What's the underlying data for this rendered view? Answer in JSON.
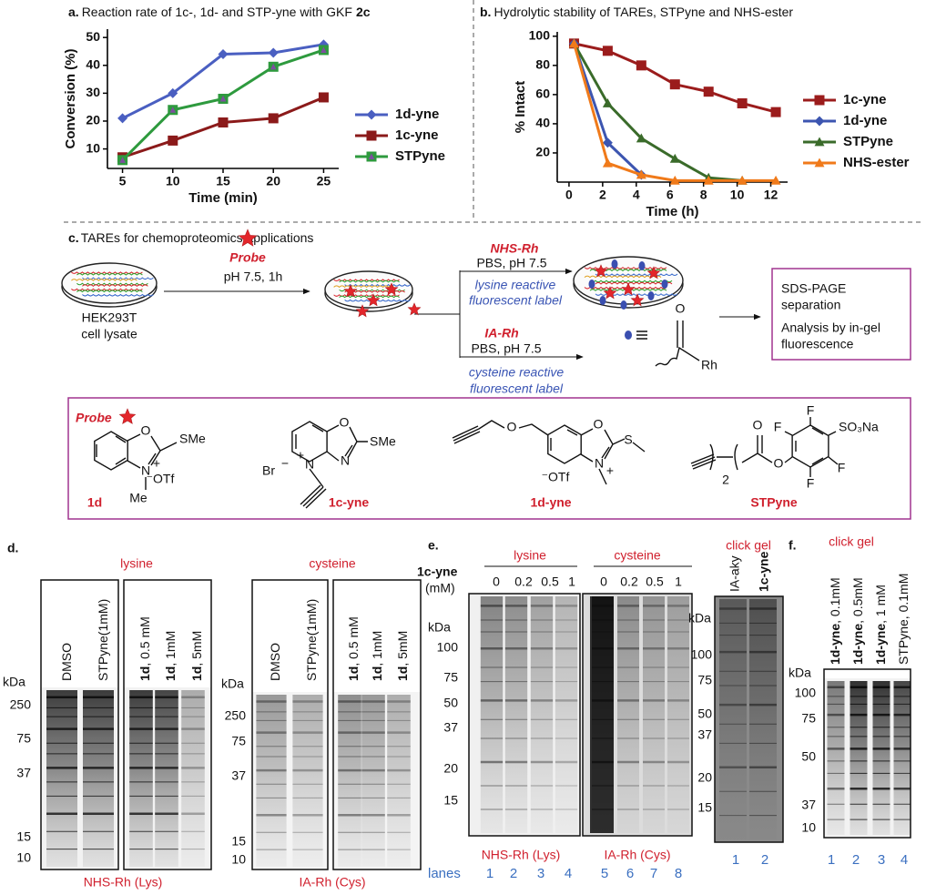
{
  "chart_data": [
    {
      "type": "line",
      "panel": "a.",
      "title": "Reaction rate of 1c-, 1d- and STP-yne with GKF",
      "title_bold": "2c",
      "x_label": "Time (min)",
      "y_label": "Conversion (%)",
      "x": [
        5,
        10,
        15,
        20,
        25
      ],
      "xlim": [
        3.5,
        26.5
      ],
      "xticks": [
        5,
        10,
        15,
        20,
        25
      ],
      "ylim": [
        3,
        53
      ],
      "yticks": [
        10,
        20,
        30,
        40,
        50
      ],
      "legend": "right",
      "series": [
        {
          "name": "1d-yne",
          "color": "#4a5fc1",
          "marker": "diamond",
          "values": [
            21,
            30,
            44,
            44.5,
            47.5
          ]
        },
        {
          "name": "1c-yne",
          "color": "#8b1a1a",
          "marker": "square",
          "values": [
            7,
            13,
            19.5,
            21,
            28.5
          ]
        },
        {
          "name": "STPyne",
          "color": "#2e9a3e",
          "marker": "boxed-triangle",
          "marker_color": "#7d4f9e",
          "values": [
            6,
            24,
            28,
            39.5,
            45.5
          ]
        }
      ]
    },
    {
      "type": "line",
      "panel": "b.",
      "title": "Hydrolytic stability of TAREs, STPyne and NHS-ester",
      "x_label": "Time (h)",
      "y_label": "% Intact",
      "x": [
        0.3,
        2.3,
        4.3,
        6.3,
        8.3,
        10.3,
        12.3
      ],
      "xlim": [
        -0.7,
        13
      ],
      "xticks": [
        0,
        2,
        4,
        6,
        8,
        10,
        12
      ],
      "ylim": [
        0,
        103
      ],
      "yticks": [
        20,
        40,
        60,
        80,
        100
      ],
      "legend": "right",
      "series": [
        {
          "name": "1c-yne",
          "color": "#9b1c1c",
          "marker": "square",
          "values": [
            95,
            90,
            80,
            67,
            62,
            54,
            48
          ]
        },
        {
          "name": "1d-yne",
          "color": "#3c55b0",
          "marker": "diamond",
          "values": [
            95,
            27,
            5,
            null,
            null,
            null,
            null
          ]
        },
        {
          "name": "STPyne",
          "color": "#3a6b2a",
          "marker": "triangle",
          "values": [
            95,
            54,
            30,
            16,
            3,
            1,
            null
          ]
        },
        {
          "name": "NHS-ester",
          "color": "#f07a1a",
          "marker": "triangle",
          "values": [
            95,
            13,
            5,
            1,
            1,
            1,
            1
          ]
        }
      ]
    }
  ],
  "panel_c": {
    "label": "c.",
    "title": "TAREs for chemoproteomics applications",
    "probe": "Probe",
    "step1": "pH 7.5, 1h",
    "lysate": [
      "HEK293T",
      "cell lysate"
    ],
    "top": {
      "reagent": "NHS-Rh",
      "buffer": "PBS, pH 7.5",
      "note": [
        "lysine reactive",
        "fluorescent label"
      ]
    },
    "bottom": {
      "reagent": "IA-Rh",
      "buffer": "PBS, pH 7.5",
      "note": [
        "cysteine reactive",
        "fluorescent label"
      ],
      "atoms": [
        "O",
        "Rh"
      ]
    },
    "box": [
      "SDS-PAGE",
      "separation",
      "Analysis by in-gel",
      "fluorescence"
    ]
  },
  "structures": {
    "probe": "Probe",
    "compounds": [
      {
        "name": "1d",
        "atoms": [
          "O",
          "SMe",
          "N",
          "+",
          "⁻OTf",
          "Me"
        ]
      },
      {
        "name": "1c-yne",
        "atoms": [
          "O",
          "SMe",
          "N",
          "N",
          "+",
          "Br",
          "−"
        ]
      },
      {
        "name": "1d-yne",
        "atoms": [
          "O",
          "O",
          "S",
          "N",
          "+",
          "⁻OTf"
        ]
      },
      {
        "name": "STPyne",
        "atoms": [
          "F",
          "SO₃Na",
          "F",
          "F",
          "F",
          "O",
          "O",
          "2"
        ]
      }
    ]
  },
  "panel_d": {
    "label": "d.",
    "groups": [
      "lysine",
      "cysteine"
    ],
    "lanes_left": [
      {
        "text": "DMSO"
      },
      {
        "text": "STPyne(1mM)"
      }
    ],
    "lanes_right": [
      {
        "bold": "1d",
        "text": ", 0.5 mM"
      },
      {
        "bold": "1d",
        "text": ", 1mM"
      },
      {
        "bold": "1d",
        "text": ", 5mM"
      }
    ],
    "kda": "kDa",
    "markers_lys": [
      250,
      75,
      37,
      15,
      10
    ],
    "markers_cys": [
      250,
      75,
      37,
      15,
      10
    ],
    "captions": [
      "NHS-Rh (Lys)",
      "IA-Rh (Cys)"
    ]
  },
  "panel_e": {
    "label": "e.",
    "compound": "1c-yne",
    "unit": "(mM)",
    "groups": [
      "lysine",
      "cysteine"
    ],
    "conc": [
      0,
      0.2,
      0.5,
      1
    ],
    "kda": "kDa",
    "markers": [
      100,
      75,
      50,
      37,
      20,
      15
    ],
    "captions": [
      "NHS-Rh (Lys)",
      "IA-Rh (Cys)"
    ],
    "lanes_label": "lanes",
    "lanes": [
      1,
      2,
      3,
      4,
      5,
      6,
      7,
      8
    ]
  },
  "click_gel": {
    "title": "click gel",
    "lanes": [
      "IA-aky",
      "1c-yne"
    ],
    "kda": "kDa",
    "markers": [
      100,
      75,
      50,
      37,
      20,
      15
    ],
    "numbers": [
      1,
      2
    ]
  },
  "panel_f": {
    "label": "f.",
    "title": "click gel",
    "lanes": [
      {
        "bold": "1d-yne",
        "text": ", 0.1mM"
      },
      {
        "bold": "1d-yne",
        "text": ", 0.5mM"
      },
      {
        "bold": "1d-yne",
        "text": ", 1 mM"
      },
      {
        "text": "STPyne, 0.1mM"
      }
    ],
    "kda": "kDa",
    "markers": [
      100,
      75,
      50,
      37,
      10
    ],
    "numbers": [
      1,
      2,
      3,
      4
    ]
  }
}
